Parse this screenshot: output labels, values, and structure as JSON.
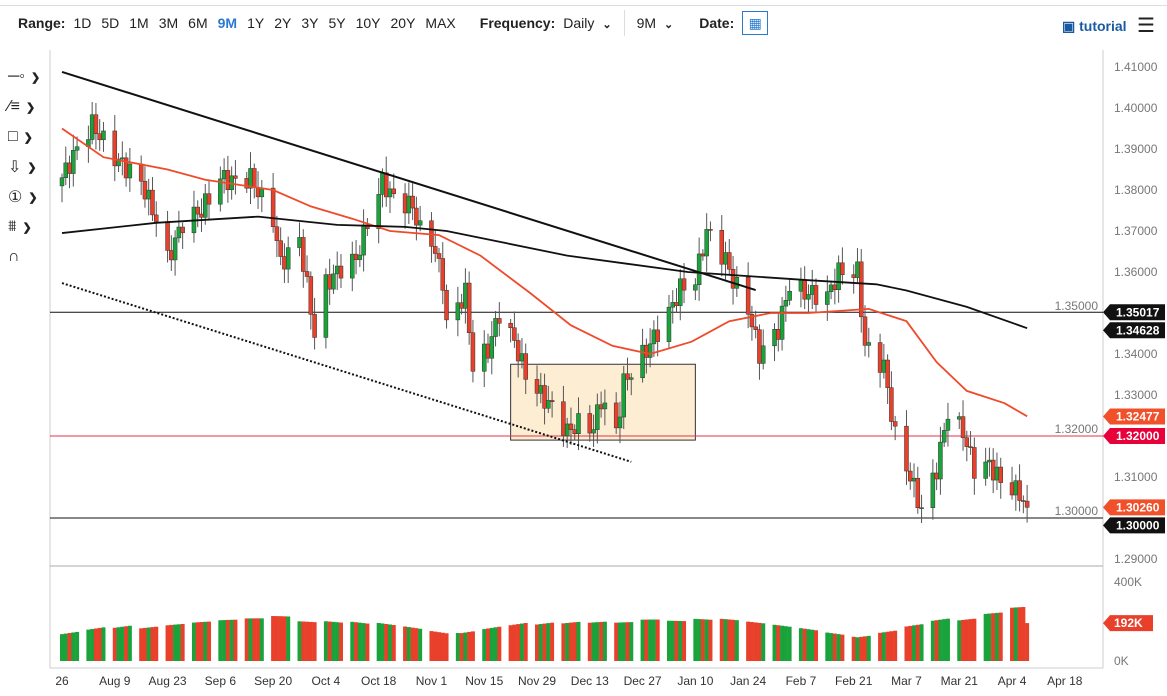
{
  "toolbar": {
    "range_label": "Range:",
    "ranges": [
      "1D",
      "5D",
      "1M",
      "3M",
      "6M",
      "9M",
      "1Y",
      "2Y",
      "3Y",
      "5Y",
      "10Y",
      "20Y",
      "MAX"
    ],
    "active_range": "9M",
    "frequency_label": "Frequency:",
    "frequency_value": "Daily",
    "period_value": "9M",
    "date_label": "Date:",
    "tutorial_label": "tutorial"
  },
  "side_tools": [
    "line-tool-icon",
    "fibonacci-tool-icon",
    "rectangle-tool-icon",
    "arrow-down-icon",
    "numbered-marker-icon",
    "measure-tool-icon",
    "magnet-icon"
  ],
  "chart_data": {
    "type": "candlestick",
    "y_ticks": [
      "1.41000",
      "1.40000",
      "1.39000",
      "1.38000",
      "1.37000",
      "1.36000",
      "1.35000",
      "1.34000",
      "1.33000",
      "1.32000",
      "1.31000",
      "1.30000",
      "1.29000"
    ],
    "ylim": [
      1.29,
      1.41
    ],
    "x_ticks": [
      [
        "2021-07-26",
        "26"
      ],
      [
        "2021-08-09",
        "Aug 9"
      ],
      [
        "2021-08-23",
        "Aug 23"
      ],
      [
        "2021-09-06",
        "Sep 6"
      ],
      [
        "2021-09-20",
        "Sep 20"
      ],
      [
        "2021-10-04",
        "Oct 4"
      ],
      [
        "2021-10-18",
        "Oct 18"
      ],
      [
        "2021-11-01",
        "Nov 1"
      ],
      [
        "2021-11-15",
        "Nov 15"
      ],
      [
        "2021-11-29",
        "Nov 29"
      ],
      [
        "2021-12-13",
        "Dec 13"
      ],
      [
        "2021-12-27",
        "Dec 27"
      ],
      [
        "2022-01-10",
        "Jan 10"
      ],
      [
        "2022-01-24",
        "Jan 24"
      ],
      [
        "2022-02-07",
        "Feb 7"
      ],
      [
        "2022-02-21",
        "Feb 21"
      ],
      [
        "2022-03-07",
        "Mar 7"
      ],
      [
        "2022-03-21",
        "Mar 21"
      ],
      [
        "2022-04-04",
        "Apr 4"
      ],
      [
        "2022-04-18",
        "Apr 18"
      ]
    ],
    "close_path": [
      [
        "2021-07-26",
        1.383
      ],
      [
        "2021-07-30",
        1.39
      ],
      [
        "2021-08-03",
        1.396
      ],
      [
        "2021-08-09",
        1.388
      ],
      [
        "2021-08-16",
        1.382
      ],
      [
        "2021-08-20",
        1.373
      ],
      [
        "2021-08-23",
        1.363
      ],
      [
        "2021-08-27",
        1.372
      ],
      [
        "2021-09-01",
        1.375
      ],
      [
        "2021-09-06",
        1.383
      ],
      [
        "2021-09-10",
        1.382
      ],
      [
        "2021-09-14",
        1.383
      ],
      [
        "2021-09-20",
        1.373
      ],
      [
        "2021-09-22",
        1.362
      ],
      [
        "2021-09-27",
        1.368
      ],
      [
        "2021-10-01",
        1.345
      ],
      [
        "2021-10-04",
        1.357
      ],
      [
        "2021-10-08",
        1.361
      ],
      [
        "2021-10-12",
        1.363
      ],
      [
        "2021-10-15",
        1.372
      ],
      [
        "2021-10-19",
        1.382
      ],
      [
        "2021-10-22",
        1.378
      ],
      [
        "2021-10-27",
        1.376
      ],
      [
        "2021-10-29",
        1.37
      ],
      [
        "2021-11-01",
        1.368
      ],
      [
        "2021-11-04",
        1.358
      ],
      [
        "2021-11-05",
        1.347
      ],
      [
        "2021-11-10",
        1.355
      ],
      [
        "2021-11-12",
        1.337
      ],
      [
        "2021-11-16",
        1.341
      ],
      [
        "2021-11-19",
        1.35
      ],
      [
        "2021-11-23",
        1.343
      ],
      [
        "2021-11-26",
        1.335
      ],
      [
        "2021-11-30",
        1.33
      ],
      [
        "2021-12-03",
        1.327
      ],
      [
        "2021-12-07",
        1.321
      ],
      [
        "2021-12-10",
        1.323
      ],
      [
        "2021-12-14",
        1.322
      ],
      [
        "2021-12-16",
        1.329
      ],
      [
        "2021-12-20",
        1.321
      ],
      [
        "2021-12-22",
        1.333
      ],
      [
        "2021-12-28",
        1.341
      ],
      [
        "2022-01-03",
        1.35
      ],
      [
        "2022-01-06",
        1.356
      ],
      [
        "2022-01-10",
        1.358
      ],
      [
        "2022-01-13",
        1.37
      ],
      [
        "2022-01-18",
        1.363
      ],
      [
        "2022-01-20",
        1.358
      ],
      [
        "2022-01-24",
        1.351
      ],
      [
        "2022-01-27",
        1.34
      ],
      [
        "2022-02-01",
        1.346
      ],
      [
        "2022-02-04",
        1.357
      ],
      [
        "2022-02-08",
        1.355
      ],
      [
        "2022-02-14",
        1.354
      ],
      [
        "2022-02-17",
        1.36
      ],
      [
        "2022-02-22",
        1.36
      ],
      [
        "2022-02-24",
        1.342
      ],
      [
        "2022-03-01",
        1.337
      ],
      [
        "2022-03-04",
        1.32
      ],
      [
        "2022-03-08",
        1.31
      ],
      [
        "2022-03-11",
        1.302
      ],
      [
        "2022-03-15",
        1.312
      ],
      [
        "2022-03-18",
        1.326
      ],
      [
        "2022-03-22",
        1.321
      ],
      [
        "2022-03-25",
        1.312
      ],
      [
        "2022-03-29",
        1.313
      ],
      [
        "2022-04-01",
        1.309
      ],
      [
        "2022-04-06",
        1.306
      ],
      [
        "2022-04-08",
        1.3026
      ]
    ],
    "ma_red": [
      [
        "2021-07-26",
        1.395
      ],
      [
        "2021-08-06",
        1.388
      ],
      [
        "2021-08-23",
        1.385
      ],
      [
        "2021-09-02",
        1.3825
      ],
      [
        "2021-09-20",
        1.38
      ],
      [
        "2021-09-30",
        1.376
      ],
      [
        "2021-10-11",
        1.373
      ],
      [
        "2021-10-21",
        1.37
      ],
      [
        "2021-11-03",
        1.369
      ],
      [
        "2021-11-14",
        1.364
      ],
      [
        "2021-11-27",
        1.355
      ],
      [
        "2021-12-08",
        1.347
      ],
      [
        "2021-12-19",
        1.342
      ],
      [
        "2021-12-29",
        1.34
      ],
      [
        "2022-01-09",
        1.343
      ],
      [
        "2022-01-19",
        1.348
      ],
      [
        "2022-01-30",
        1.35
      ],
      [
        "2022-02-09",
        1.35
      ],
      [
        "2022-02-25",
        1.351
      ],
      [
        "2022-03-07",
        1.348
      ],
      [
        "2022-03-15",
        1.338
      ],
      [
        "2022-03-23",
        1.331
      ],
      [
        "2022-04-02",
        1.328
      ],
      [
        "2022-04-08",
        1.3248
      ]
    ],
    "ma_black": [
      [
        "2021-07-26",
        1.3695
      ],
      [
        "2021-08-20",
        1.372
      ],
      [
        "2021-09-16",
        1.3735
      ],
      [
        "2021-10-07",
        1.3715
      ],
      [
        "2021-10-25",
        1.371
      ],
      [
        "2021-11-05",
        1.37
      ],
      [
        "2021-11-21",
        1.367
      ],
      [
        "2021-12-07",
        1.364
      ],
      [
        "2021-12-23",
        1.362
      ],
      [
        "2022-01-08",
        1.36
      ],
      [
        "2022-01-24",
        1.359
      ],
      [
        "2022-02-09",
        1.358
      ],
      [
        "2022-02-27",
        1.357
      ],
      [
        "2022-03-07",
        1.3555
      ],
      [
        "2022-03-23",
        1.3515
      ],
      [
        "2022-04-08",
        1.3463
      ]
    ],
    "trendline_solid": [
      [
        "2021-07-26",
        1.4088
      ],
      [
        "2022-01-26",
        1.3556
      ]
    ],
    "trendline_dotted": [
      [
        "2021-07-26",
        1.3573
      ],
      [
        "2021-12-24",
        1.3137
      ]
    ],
    "box": {
      "from": "2021-11-22",
      "to": "2022-01-10",
      "top": 1.3375,
      "bottom": 1.319
    },
    "hlines": [
      {
        "price": 1.35017,
        "color": "#111"
      },
      {
        "price": 1.32,
        "color": "#e8334a"
      },
      {
        "price": 1.3,
        "color": "#111"
      }
    ],
    "price_tags": [
      {
        "label": "1.35017",
        "price": 1.35017,
        "color": "#111111"
      },
      {
        "label": "1.34628",
        "price": 1.34628,
        "color": "#111111"
      },
      {
        "label": "1.32477",
        "price": 1.32477,
        "color": "#f0502a"
      },
      {
        "label": "1.32000",
        "price": 1.32,
        "color": "#e8003a"
      },
      {
        "label": "1.30000",
        "price": 1.3,
        "color": "#111111"
      },
      {
        "label": "1.30260",
        "price": 1.3026,
        "color": "#f0502a"
      }
    ],
    "volume": {
      "ticks": [
        "400K",
        "0K"
      ],
      "max": 400,
      "last_label": "192K",
      "weekly_avg_k": [
        170,
        180,
        175,
        160,
        165,
        170,
        175,
        180,
        190,
        170,
        175,
        180,
        185,
        180,
        170,
        175,
        185,
        190,
        180,
        175,
        170,
        165,
        175,
        170,
        180,
        185,
        180,
        175,
        170,
        160,
        150,
        165,
        185,
        200,
        190,
        210,
        230,
        250,
        260,
        240,
        230,
        225,
        215,
        210,
        200
      ]
    },
    "colors": {
      "up": "#1aa33a",
      "down": "#e8402a",
      "ma_short": "#f04a2a",
      "ma_long": "#111111"
    }
  }
}
